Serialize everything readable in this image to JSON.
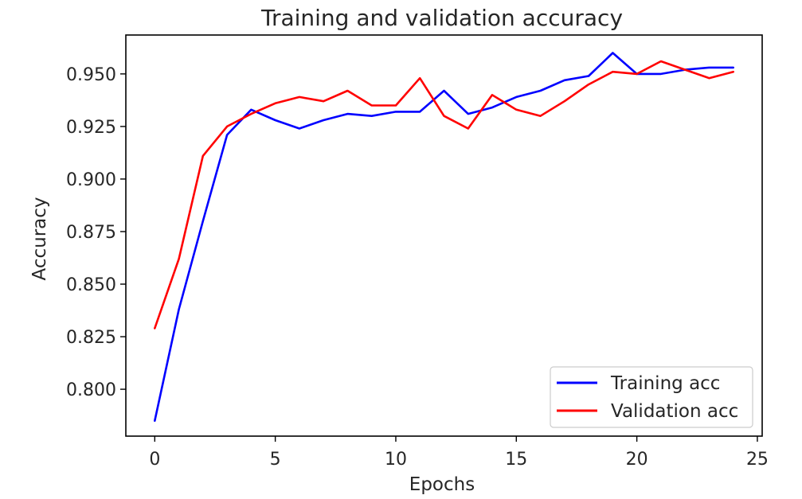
{
  "chart_data": {
    "type": "line",
    "title": "Training and validation accuracy",
    "xlabel": "Epochs",
    "ylabel": "Accuracy",
    "xlim": [
      -1.2,
      25.2
    ],
    "ylim": [
      0.7777,
      0.9685
    ],
    "xticks": [
      0,
      5,
      10,
      15,
      20,
      25
    ],
    "yticks": [
      0.8,
      0.825,
      0.85,
      0.875,
      0.9,
      0.925,
      0.95
    ],
    "xtick_labels": [
      "0",
      "5",
      "10",
      "15",
      "20",
      "25"
    ],
    "ytick_labels": [
      "0.800",
      "0.825",
      "0.850",
      "0.875",
      "0.900",
      "0.925",
      "0.950"
    ],
    "grid": false,
    "legend_position": "lower-right",
    "x": [
      0,
      1,
      2,
      3,
      4,
      5,
      6,
      7,
      8,
      9,
      10,
      11,
      12,
      13,
      14,
      15,
      16,
      17,
      18,
      19,
      20,
      21,
      22,
      23,
      24
    ],
    "series": [
      {
        "name": "Training acc",
        "color": "#0000ff",
        "values": [
          0.785,
          0.838,
          0.88,
          0.921,
          0.933,
          0.928,
          0.924,
          0.928,
          0.931,
          0.93,
          0.932,
          0.932,
          0.942,
          0.931,
          0.934,
          0.939,
          0.942,
          0.947,
          0.949,
          0.96,
          0.95,
          0.95,
          0.952,
          0.953,
          0.953
        ]
      },
      {
        "name": "Validation acc",
        "color": "#ff0000",
        "values": [
          0.829,
          0.862,
          0.911,
          0.925,
          0.931,
          0.936,
          0.939,
          0.937,
          0.942,
          0.935,
          0.935,
          0.948,
          0.93,
          0.924,
          0.94,
          0.933,
          0.93,
          0.937,
          0.945,
          0.951,
          0.95,
          0.956,
          0.952,
          0.948,
          0.951
        ]
      }
    ]
  }
}
